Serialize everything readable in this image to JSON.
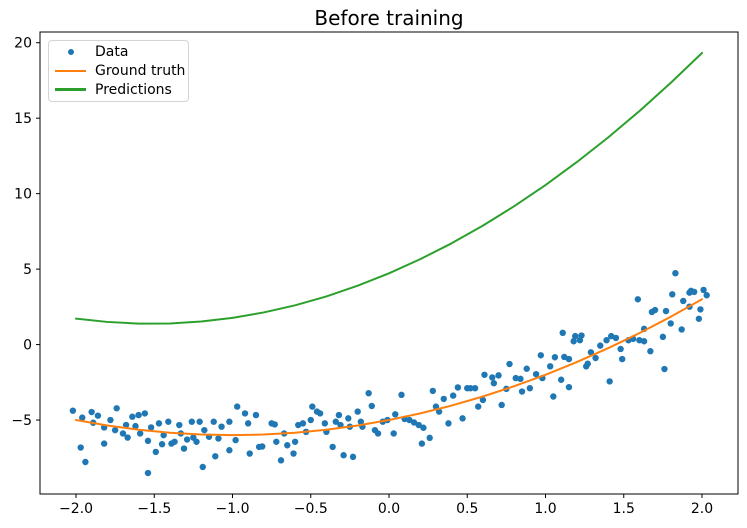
{
  "chart_data": {
    "type": "scatter",
    "title": "Before training",
    "xlabel": "",
    "ylabel": "",
    "xlim": [
      -2.23,
      2.23
    ],
    "ylim": [
      -9.9,
      20.71
    ],
    "grid": false,
    "legend_position": "upper left",
    "x_ticks": [
      -2.0,
      -1.5,
      -1.0,
      -0.5,
      0.0,
      0.5,
      1.0,
      1.5,
      2.0
    ],
    "x_tick_labels": [
      "−2.0",
      "−1.5",
      "−1.0",
      "−0.5",
      "0.0",
      "0.5",
      "1.0",
      "1.5",
      "2.0"
    ],
    "y_ticks": [
      -5,
      0,
      5,
      10,
      15,
      20
    ],
    "y_tick_labels": [
      "−5",
      "0",
      "5",
      "10",
      "15",
      "20"
    ],
    "axis_color": "#000000",
    "series": [
      {
        "name": "Data",
        "kind": "scatter",
        "marker": "circle",
        "color": "#1f77b4",
        "points": [
          [
            -2.02,
            -4.38
          ],
          [
            -1.97,
            -6.82
          ],
          [
            -1.96,
            -4.84
          ],
          [
            -1.94,
            -7.78
          ],
          [
            -1.9,
            -4.47
          ],
          [
            -1.89,
            -5.18
          ],
          [
            -1.86,
            -4.71
          ],
          [
            -1.82,
            -5.49
          ],
          [
            -1.82,
            -6.56
          ],
          [
            -1.78,
            -5.0
          ],
          [
            -1.75,
            -5.67
          ],
          [
            -1.74,
            -4.22
          ],
          [
            -1.7,
            -5.89
          ],
          [
            -1.68,
            -5.33
          ],
          [
            -1.67,
            -6.16
          ],
          [
            -1.64,
            -4.78
          ],
          [
            -1.62,
            -5.4
          ],
          [
            -1.6,
            -4.67
          ],
          [
            -1.59,
            -5.89
          ],
          [
            -1.56,
            -4.56
          ],
          [
            -1.54,
            -6.38
          ],
          [
            -1.54,
            -8.51
          ],
          [
            -1.52,
            -5.49
          ],
          [
            -1.49,
            -7.11
          ],
          [
            -1.47,
            -5.22
          ],
          [
            -1.45,
            -6.6
          ],
          [
            -1.44,
            -6.0
          ],
          [
            -1.41,
            -5.11
          ],
          [
            -1.39,
            -6.56
          ],
          [
            -1.37,
            -6.44
          ],
          [
            -1.34,
            -5.33
          ],
          [
            -1.33,
            -5.89
          ],
          [
            -1.31,
            -6.89
          ],
          [
            -1.29,
            -6.29
          ],
          [
            -1.26,
            -5.11
          ],
          [
            -1.25,
            -6.16
          ],
          [
            -1.23,
            -6.44
          ],
          [
            -1.21,
            -5.11
          ],
          [
            -1.19,
            -8.11
          ],
          [
            -1.18,
            -5.67
          ],
          [
            -1.15,
            -6.11
          ],
          [
            -1.12,
            -5.11
          ],
          [
            -1.11,
            -7.4
          ],
          [
            -1.09,
            -6.22
          ],
          [
            -1.07,
            -5.44
          ],
          [
            -1.02,
            -5.11
          ],
          [
            -1.02,
            -7.0
          ],
          [
            -0.98,
            -6.33
          ],
          [
            -0.97,
            -4.11
          ],
          [
            -0.92,
            -4.56
          ],
          [
            -0.9,
            -5.22
          ],
          [
            -0.89,
            -7.22
          ],
          [
            -0.85,
            -4.67
          ],
          [
            -0.83,
            -6.78
          ],
          [
            -0.81,
            -6.75
          ],
          [
            -0.75,
            -5.22
          ],
          [
            -0.73,
            -5.29
          ],
          [
            -0.72,
            -6.44
          ],
          [
            -0.69,
            -7.67
          ],
          [
            -0.67,
            -5.89
          ],
          [
            -0.65,
            -6.67
          ],
          [
            -0.61,
            -7.22
          ],
          [
            -0.6,
            -6.44
          ],
          [
            -0.58,
            -5.33
          ],
          [
            -0.55,
            -5.22
          ],
          [
            -0.53,
            -5.78
          ],
          [
            -0.5,
            -5.0
          ],
          [
            -0.49,
            -4.11
          ],
          [
            -0.46,
            -4.44
          ],
          [
            -0.44,
            -4.56
          ],
          [
            -0.41,
            -5.22
          ],
          [
            -0.4,
            -5.78
          ],
          [
            -0.36,
            -6.78
          ],
          [
            -0.34,
            -5.11
          ],
          [
            -0.32,
            -4.67
          ],
          [
            -0.31,
            -5.33
          ],
          [
            -0.29,
            -7.33
          ],
          [
            -0.26,
            -4.89
          ],
          [
            -0.25,
            -5.44
          ],
          [
            -0.23,
            -7.44
          ],
          [
            -0.2,
            -4.44
          ],
          [
            -0.18,
            -5.11
          ],
          [
            -0.17,
            -5.44
          ],
          [
            -0.13,
            -3.22
          ],
          [
            -0.11,
            -4.07
          ],
          [
            -0.09,
            -5.67
          ],
          [
            -0.07,
            -5.89
          ],
          [
            -0.04,
            -5.11
          ],
          [
            -0.01,
            -5.0
          ],
          [
            0.03,
            -5.89
          ],
          [
            0.04,
            -4.62
          ],
          [
            0.08,
            -3.33
          ],
          [
            0.1,
            -4.93
          ],
          [
            0.13,
            -5.0
          ],
          [
            0.16,
            -5.16
          ],
          [
            0.19,
            -5.33
          ],
          [
            0.21,
            -6.56
          ],
          [
            0.22,
            -5.51
          ],
          [
            0.26,
            -6.18
          ],
          [
            0.28,
            -3.07
          ],
          [
            0.3,
            -4.11
          ],
          [
            0.32,
            -4.44
          ],
          [
            0.35,
            -3.6
          ],
          [
            0.38,
            -5.22
          ],
          [
            0.41,
            -3.38
          ],
          [
            0.44,
            -2.84
          ],
          [
            0.47,
            -4.89
          ],
          [
            0.5,
            -2.89
          ],
          [
            0.52,
            -2.89
          ],
          [
            0.55,
            -2.89
          ],
          [
            0.57,
            -4.11
          ],
          [
            0.6,
            -3.67
          ],
          [
            0.61,
            -2.0
          ],
          [
            0.66,
            -2.18
          ],
          [
            0.67,
            -2.56
          ],
          [
            0.7,
            -2.04
          ],
          [
            0.72,
            -4.0
          ],
          [
            0.75,
            -2.93
          ],
          [
            0.77,
            -1.29
          ],
          [
            0.81,
            -2.22
          ],
          [
            0.84,
            -2.27
          ],
          [
            0.85,
            -3.11
          ],
          [
            0.88,
            -1.6
          ],
          [
            0.9,
            -2.89
          ],
          [
            0.94,
            -1.96
          ],
          [
            0.97,
            -0.71
          ],
          [
            0.98,
            -2.22
          ],
          [
            1.03,
            -1.44
          ],
          [
            1.05,
            -3.44
          ],
          [
            1.06,
            -0.84
          ],
          [
            1.1,
            -2.33
          ],
          [
            1.11,
            0.78
          ],
          [
            1.12,
            -0.82
          ],
          [
            1.15,
            -0.96
          ],
          [
            1.15,
            -2.82
          ],
          [
            1.18,
            0.22
          ],
          [
            1.19,
            0.56
          ],
          [
            1.22,
            0.29
          ],
          [
            1.23,
            0.6
          ],
          [
            1.26,
            -1.44
          ],
          [
            1.27,
            -1.27
          ],
          [
            1.29,
            -0.51
          ],
          [
            1.32,
            -0.89
          ],
          [
            1.35,
            -0.07
          ],
          [
            1.39,
            0.29
          ],
          [
            1.41,
            -2.44
          ],
          [
            1.42,
            0.56
          ],
          [
            1.45,
            0.44
          ],
          [
            1.48,
            -0.29
          ],
          [
            1.49,
            -0.96
          ],
          [
            1.53,
            0.29
          ],
          [
            1.56,
            0.38
          ],
          [
            1.59,
            3.0
          ],
          [
            1.6,
            0.29
          ],
          [
            1.63,
            0.22
          ],
          [
            1.63,
            1.04
          ],
          [
            1.67,
            -0.44
          ],
          [
            1.68,
            2.16
          ],
          [
            1.7,
            2.29
          ],
          [
            1.75,
            0.51
          ],
          [
            1.76,
            -1.62
          ],
          [
            1.77,
            2.22
          ],
          [
            1.8,
            1.4
          ],
          [
            1.81,
            3.33
          ],
          [
            1.83,
            4.73
          ],
          [
            1.87,
            1.0
          ],
          [
            1.88,
            2.89
          ],
          [
            1.92,
            3.44
          ],
          [
            1.92,
            2.51
          ],
          [
            1.93,
            3.56
          ],
          [
            1.95,
            3.49
          ],
          [
            1.98,
            1.71
          ],
          [
            1.99,
            2.33
          ],
          [
            2.01,
            3.62
          ],
          [
            2.03,
            3.27
          ]
        ]
      },
      {
        "name": "Ground truth",
        "kind": "line",
        "color": "#ff7f0e",
        "formula": "y = x^2 + 2x - 5",
        "x": [
          -2.0,
          -1.8,
          -1.6,
          -1.4,
          -1.2,
          -1.0,
          -0.8,
          -0.6,
          -0.4,
          -0.2,
          0.0,
          0.2,
          0.4,
          0.6,
          0.8,
          1.0,
          1.2,
          1.4,
          1.6,
          1.8,
          2.0
        ],
        "y": [
          -5.0,
          -5.36,
          -5.64,
          -5.84,
          -5.96,
          -6.0,
          -5.96,
          -5.84,
          -5.64,
          -5.36,
          -5.0,
          -4.56,
          -4.04,
          -3.44,
          -2.76,
          -2.0,
          -1.16,
          -0.24,
          0.76,
          1.84,
          3.0
        ]
      },
      {
        "name": "Predictions",
        "kind": "line",
        "color": "#2ca02c",
        "formula": "y = 1.45x^2 + 4.4x + 4.72",
        "x": [
          -2.0,
          -1.8,
          -1.6,
          -1.4,
          -1.2,
          -1.0,
          -0.8,
          -0.6,
          -0.4,
          -0.2,
          0.0,
          0.2,
          0.4,
          0.6,
          0.8,
          1.0,
          1.2,
          1.4,
          1.6,
          1.8,
          2.0
        ],
        "y": [
          1.72,
          1.5,
          1.39,
          1.4,
          1.53,
          1.77,
          2.13,
          2.6,
          3.19,
          3.9,
          4.72,
          5.66,
          6.71,
          7.88,
          9.17,
          10.57,
          12.09,
          13.72,
          15.47,
          17.34,
          19.32
        ]
      }
    ]
  }
}
